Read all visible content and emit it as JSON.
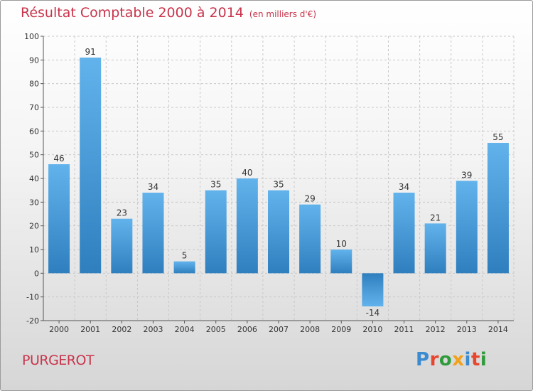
{
  "header": {
    "title": "Résultat Comptable 2000 à 2014",
    "unit": "(en milliers d'€)"
  },
  "footer": {
    "commune": "PURGEROT",
    "logo_text": "Proxiti",
    "logo_colors": [
      "#3a8bd0",
      "#e6452e",
      "#2f9b3a",
      "#f0a21b",
      "#3a8bd0",
      "#e6452e",
      "#2f9b3a"
    ]
  },
  "colors": {
    "title": "#c8344b",
    "bar_light": "#62b3ec",
    "bar_dark": "#2f7fbf",
    "grid": "#c8c8c8",
    "axis": "#555555"
  },
  "chart_data": {
    "type": "bar",
    "title": "Résultat Comptable 2000 à 2014",
    "categories": [
      "2000",
      "2001",
      "2002",
      "2003",
      "2004",
      "2005",
      "2006",
      "2007",
      "2008",
      "2009",
      "2010",
      "2011",
      "2012",
      "2013",
      "2014"
    ],
    "values": [
      46,
      91,
      23,
      34,
      5,
      35,
      40,
      35,
      29,
      10,
      -14,
      34,
      21,
      39,
      55
    ],
    "ylim": [
      -20,
      100
    ],
    "yticks": [
      -20,
      -10,
      0,
      10,
      20,
      30,
      40,
      50,
      60,
      70,
      80,
      90,
      100
    ],
    "grid": true,
    "data_labels": true
  }
}
